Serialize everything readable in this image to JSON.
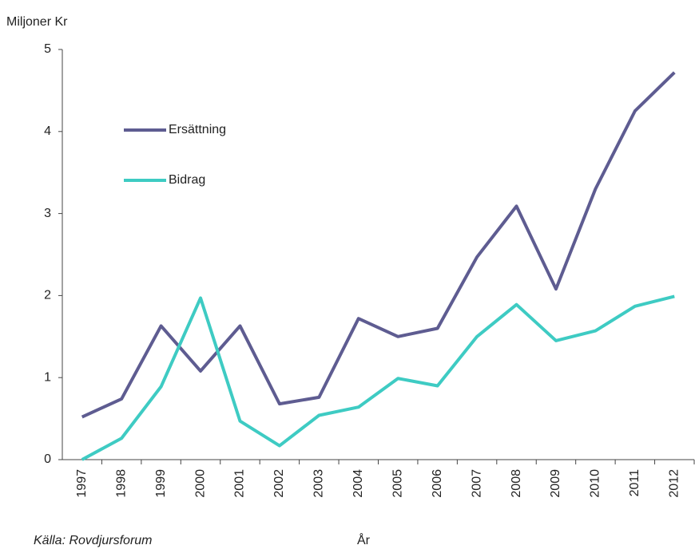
{
  "chart_data": {
    "type": "line",
    "y_label": "Miljoner Kr",
    "x_label": "År",
    "source": "Källa: Rovdjursforum",
    "categories": [
      "1997",
      "1998",
      "1999",
      "2000",
      "2001",
      "2002",
      "2003",
      "2004",
      "2005",
      "2006",
      "2007",
      "2008",
      "2009",
      "2010",
      "2011",
      "2012"
    ],
    "series": [
      {
        "name": "Ersättning",
        "color": "#5e5c91",
        "values": [
          0.52,
          0.74,
          1.63,
          1.08,
          1.63,
          0.68,
          0.76,
          1.72,
          1.5,
          1.6,
          2.47,
          3.09,
          2.08,
          3.3,
          4.25,
          4.72
        ]
      },
      {
        "name": "Bidrag",
        "color": "#3ecbc3",
        "values": [
          0,
          0.26,
          0.89,
          1.97,
          0.47,
          0.17,
          0.54,
          0.64,
          0.99,
          0.9,
          1.5,
          1.89,
          1.45,
          1.57,
          1.87,
          1.99
        ]
      }
    ],
    "ylim": [
      0,
      5
    ],
    "yticks": [
      0,
      1,
      2,
      3,
      4,
      5
    ],
    "grid": false
  }
}
